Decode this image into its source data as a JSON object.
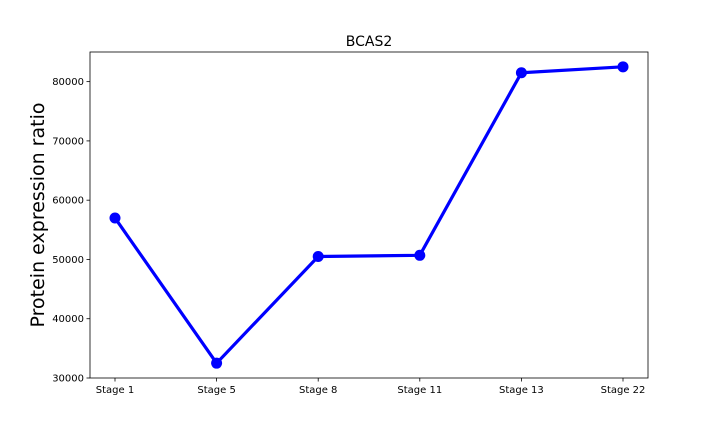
{
  "chart_data": {
    "type": "line",
    "title": "BCAS2",
    "xlabel": "",
    "ylabel": "Protein expression ratio",
    "categories": [
      "Stage 1",
      "Stage 5",
      "Stage 8",
      "Stage 11",
      "Stage 13",
      "Stage 22"
    ],
    "series": [
      {
        "values": [
          57000,
          32500,
          50500,
          50700,
          81500,
          82500
        ],
        "color": "#0000ff"
      }
    ],
    "ylim": [
      30000,
      85000
    ],
    "yticks": [
      30000,
      40000,
      50000,
      60000,
      70000,
      80000
    ],
    "ytick_labels": [
      "30000",
      "40000",
      "50000",
      "60000",
      "70000",
      "80000"
    ],
    "grid": false,
    "legend": "none"
  }
}
